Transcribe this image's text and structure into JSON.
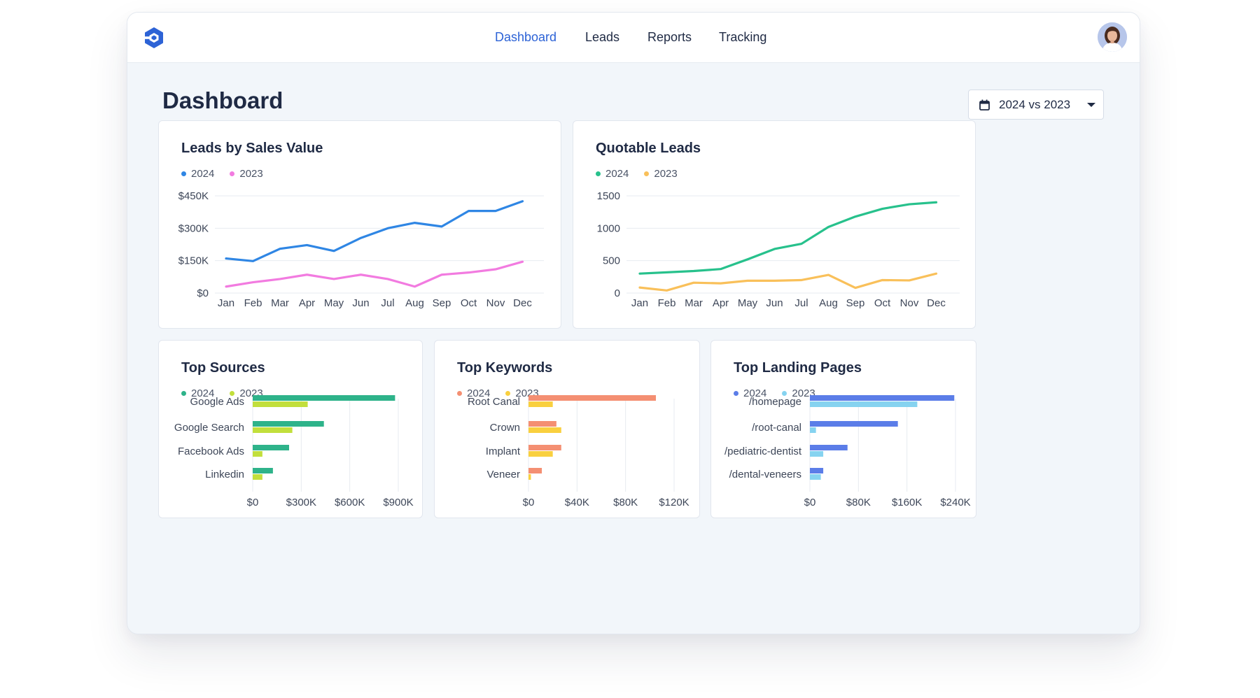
{
  "nav": {
    "items": [
      {
        "label": "Dashboard",
        "active": true
      },
      {
        "label": "Leads",
        "active": false
      },
      {
        "label": "Reports",
        "active": false
      },
      {
        "label": "Tracking",
        "active": false
      }
    ]
  },
  "icons": {
    "logo": "hexagon-logo-icon",
    "calendar": "calendar-icon",
    "dropdown": "chevron-down-icon",
    "avatar": "user-avatar"
  },
  "colors": {
    "accent": "#2d63d6",
    "title": "#1f2a44"
  },
  "page": {
    "title": "Dashboard"
  },
  "date_filter": {
    "label": "2024 vs 2023"
  },
  "chart_data": [
    {
      "id": "leads-sales",
      "type": "line",
      "title": "Leads by Sales Value",
      "xlabel": "",
      "ylabel": "",
      "categories": [
        "Jan",
        "Feb",
        "Mar",
        "Apr",
        "May",
        "Jun",
        "Jul",
        "Aug",
        "Sep",
        "Oct",
        "Nov",
        "Dec"
      ],
      "series": [
        {
          "name": "2024",
          "color": "#2f86e4",
          "values": [
            160,
            148,
            205,
            222,
            195,
            255,
            300,
            325,
            308,
            380,
            380,
            425
          ]
        },
        {
          "name": "2023",
          "color": "#f27be0",
          "values": [
            30,
            50,
            65,
            85,
            65,
            85,
            65,
            30,
            85,
            95,
            110,
            145
          ]
        }
      ],
      "yticks": [
        {
          "v": 0,
          "label": "$0"
        },
        {
          "v": 150,
          "label": "$150K"
        },
        {
          "v": 300,
          "label": "$300K"
        },
        {
          "v": 450,
          "label": "$450K"
        }
      ],
      "ylim": [
        0,
        450
      ],
      "grid": true,
      "legend": "top-left"
    },
    {
      "id": "quotable-leads",
      "type": "line",
      "title": "Quotable Leads",
      "xlabel": "",
      "ylabel": "",
      "categories": [
        "Jan",
        "Feb",
        "Mar",
        "Apr",
        "May",
        "Jun",
        "Jul",
        "Aug",
        "Sep",
        "Oct",
        "Nov",
        "Dec"
      ],
      "series": [
        {
          "name": "2024",
          "color": "#27c18c",
          "values": [
            300,
            320,
            340,
            370,
            520,
            680,
            760,
            1020,
            1180,
            1300,
            1370,
            1400
          ]
        },
        {
          "name": "2023",
          "color": "#f9c05a",
          "values": [
            85,
            40,
            160,
            150,
            190,
            190,
            200,
            280,
            80,
            200,
            195,
            300
          ]
        }
      ],
      "yticks": [
        {
          "v": 0,
          "label": "0"
        },
        {
          "v": 500,
          "label": "500"
        },
        {
          "v": 1000,
          "label": "1000"
        },
        {
          "v": 1500,
          "label": "1500"
        }
      ],
      "ylim": [
        0,
        1500
      ],
      "grid": true,
      "legend": "top-left"
    },
    {
      "id": "top-sources",
      "type": "bar",
      "orientation": "horizontal",
      "title": "Top Sources",
      "categories": [
        "Google Ads",
        "Google Search",
        "Facebook Ads",
        "Linkedin"
      ],
      "series": [
        {
          "name": "2024",
          "color": "#2eb38a",
          "values": [
            880,
            440,
            225,
            125
          ]
        },
        {
          "name": "2023",
          "color": "#c2df3c",
          "values": [
            340,
            245,
            60,
            60
          ]
        }
      ],
      "xticks": [
        {
          "v": 0,
          "label": "$0"
        },
        {
          "v": 300,
          "label": "$300K"
        },
        {
          "v": 600,
          "label": "$600K"
        },
        {
          "v": 900,
          "label": "$900K"
        }
      ],
      "xlim": [
        0,
        900
      ],
      "grid": true,
      "legend": "top-left"
    },
    {
      "id": "top-keywords",
      "type": "bar",
      "orientation": "horizontal",
      "title": "Top Keywords",
      "categories": [
        "Root Canal",
        "Crown",
        "Implant",
        "Veneer"
      ],
      "series": [
        {
          "name": "2024",
          "color": "#f48f72",
          "values": [
            105,
            23,
            27,
            11
          ]
        },
        {
          "name": "2023",
          "color": "#f9d03f",
          "values": [
            20,
            27,
            20,
            2
          ]
        }
      ],
      "xticks": [
        {
          "v": 0,
          "label": "$0"
        },
        {
          "v": 40,
          "label": "$40K"
        },
        {
          "v": 80,
          "label": "$80K"
        },
        {
          "v": 120,
          "label": "$120K"
        }
      ],
      "xlim": [
        0,
        120
      ],
      "grid": true,
      "legend": "top-left"
    },
    {
      "id": "top-landing",
      "type": "bar",
      "orientation": "horizontal",
      "title": "Top Landing Pages",
      "categories": [
        "/homepage",
        "/root-canal",
        "/pediatric-dentist",
        "/dental-veneers"
      ],
      "series": [
        {
          "name": "2024",
          "color": "#5b7de8",
          "values": [
            238,
            145,
            62,
            22
          ]
        },
        {
          "name": "2023",
          "color": "#86d3f0",
          "values": [
            177,
            10,
            22,
            18
          ]
        }
      ],
      "xticks": [
        {
          "v": 0,
          "label": "$0"
        },
        {
          "v": 80,
          "label": "$80K"
        },
        {
          "v": 160,
          "label": "$160K"
        },
        {
          "v": 240,
          "label": "$240K"
        }
      ],
      "xlim": [
        0,
        240
      ],
      "grid": true,
      "legend": "top-left"
    }
  ]
}
